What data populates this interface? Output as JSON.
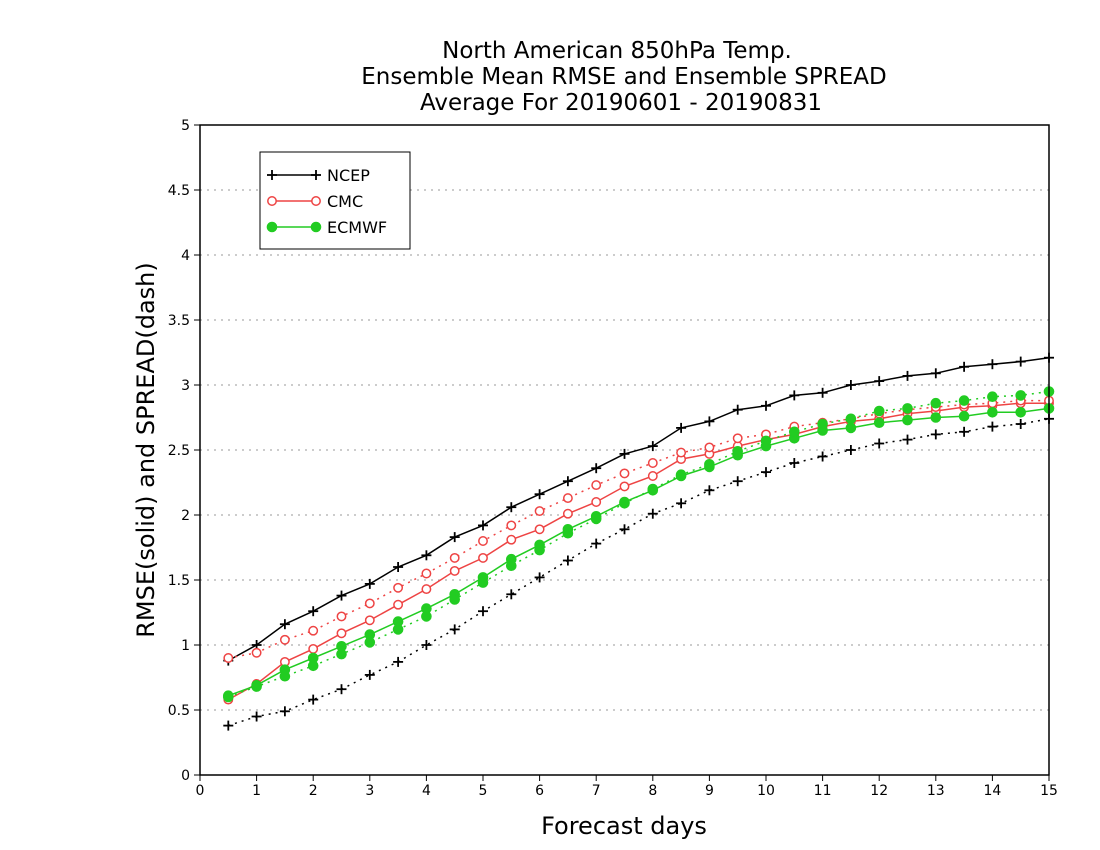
{
  "chart_data": {
    "type": "line",
    "title": [
      "North American 850hPa Temp.",
      "Ensemble Mean RMSE and Ensemble SPREAD",
      "Average For 20190601 - 20190831"
    ],
    "xlabel": "Forecast days",
    "ylabel": "RMSE(solid) and SPREAD(dash)",
    "xlim": [
      0,
      15
    ],
    "ylim": [
      0,
      5
    ],
    "xticks": [
      0,
      1,
      2,
      3,
      4,
      5,
      6,
      7,
      8,
      9,
      10,
      11,
      12,
      13,
      14,
      15
    ],
    "xtick_labels": [
      "0",
      "1",
      "2",
      "3",
      "4",
      "5",
      "6",
      "7",
      "8",
      "9",
      "10",
      "11",
      "12",
      "13",
      "14",
      "15"
    ],
    "yticks": [
      0,
      0.5,
      1,
      1.5,
      2,
      2.5,
      3,
      3.5,
      4,
      4.5,
      5
    ],
    "ytick_labels": [
      "0",
      "0.5",
      "1",
      "1.5",
      "2",
      "2.5",
      "3",
      "3.5",
      "4",
      "4.5",
      "5"
    ],
    "grid": true,
    "legend_position": "top-left",
    "x": [
      0.5,
      1,
      1.5,
      2,
      2.5,
      3,
      3.5,
      4,
      4.5,
      5,
      5.5,
      6,
      6.5,
      7,
      7.5,
      8,
      8.5,
      9,
      9.5,
      10,
      10.5,
      11,
      11.5,
      12,
      12.5,
      13,
      13.5,
      14,
      14.5,
      15
    ],
    "series": [
      {
        "name": "NCEP",
        "color": "#000000",
        "marker": "plus",
        "rmse": [
          0.88,
          1.0,
          1.16,
          1.26,
          1.38,
          1.47,
          1.6,
          1.69,
          1.83,
          1.92,
          2.06,
          2.16,
          2.26,
          2.36,
          2.47,
          2.53,
          2.67,
          2.72,
          2.81,
          2.84,
          2.92,
          2.94,
          3.0,
          3.03,
          3.07,
          3.09,
          3.14,
          3.16,
          3.18,
          3.21
        ],
        "spread": [
          0.38,
          0.45,
          0.49,
          0.58,
          0.66,
          0.77,
          0.87,
          1.0,
          1.12,
          1.26,
          1.39,
          1.52,
          1.65,
          1.78,
          1.89,
          2.01,
          2.09,
          2.19,
          2.26,
          2.33,
          2.4,
          2.45,
          2.5,
          2.55,
          2.58,
          2.62,
          2.64,
          2.68,
          2.7,
          2.74
        ]
      },
      {
        "name": "CMC",
        "color": "#ee4444",
        "marker": "open-circle",
        "rmse": [
          0.58,
          0.7,
          0.87,
          0.97,
          1.09,
          1.19,
          1.31,
          1.43,
          1.57,
          1.67,
          1.81,
          1.89,
          2.01,
          2.1,
          2.22,
          2.3,
          2.43,
          2.47,
          2.53,
          2.58,
          2.62,
          2.68,
          2.72,
          2.74,
          2.78,
          2.8,
          2.83,
          2.84,
          2.86,
          2.86
        ],
        "spread": [
          0.9,
          0.94,
          1.04,
          1.11,
          1.22,
          1.32,
          1.44,
          1.55,
          1.67,
          1.8,
          1.92,
          2.03,
          2.13,
          2.23,
          2.32,
          2.4,
          2.48,
          2.52,
          2.59,
          2.62,
          2.68,
          2.71,
          2.74,
          2.78,
          2.81,
          2.83,
          2.85,
          2.86,
          2.88,
          2.88
        ]
      },
      {
        "name": "ECMWF",
        "color": "#22cc22",
        "marker": "filled-circle",
        "rmse": [
          0.61,
          0.69,
          0.81,
          0.9,
          0.99,
          1.08,
          1.18,
          1.28,
          1.39,
          1.52,
          1.66,
          1.77,
          1.89,
          1.99,
          2.1,
          2.19,
          2.3,
          2.37,
          2.46,
          2.53,
          2.59,
          2.65,
          2.67,
          2.71,
          2.73,
          2.75,
          2.76,
          2.79,
          2.79,
          2.82
        ],
        "spread": [
          0.6,
          0.68,
          0.76,
          0.84,
          0.93,
          1.02,
          1.12,
          1.22,
          1.35,
          1.48,
          1.61,
          1.73,
          1.86,
          1.97,
          2.09,
          2.2,
          2.31,
          2.39,
          2.49,
          2.57,
          2.64,
          2.7,
          2.74,
          2.8,
          2.82,
          2.86,
          2.88,
          2.91,
          2.92,
          2.95
        ]
      }
    ]
  }
}
